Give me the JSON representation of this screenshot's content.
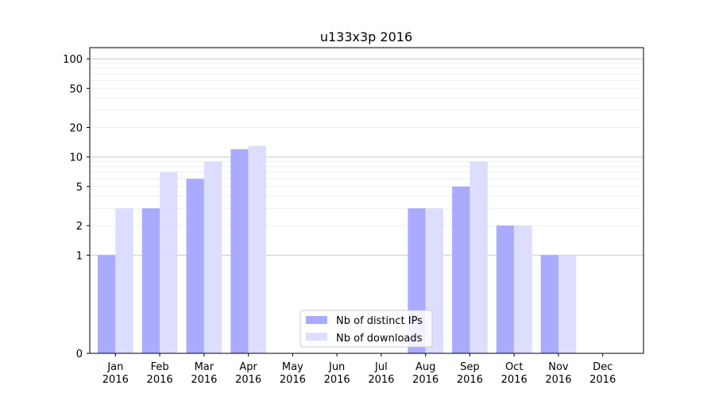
{
  "chart_data": {
    "type": "bar",
    "title": "u133x3p 2016",
    "xlabel": "",
    "ylabel": "",
    "yscale": "symlog",
    "ylim": [
      0,
      130
    ],
    "yticks": [
      0,
      1,
      2,
      5,
      10,
      20,
      50,
      100
    ],
    "categories": [
      "Jan\n2016",
      "Feb\n2016",
      "Mar\n2016",
      "Apr\n2016",
      "May\n2016",
      "Jun\n2016",
      "Jul\n2016",
      "Aug\n2016",
      "Sep\n2016",
      "Oct\n2016",
      "Nov\n2016",
      "Dec\n2016"
    ],
    "series": [
      {
        "name": "Nb of distinct IPs",
        "color": "#aaaaff",
        "values": [
          1,
          3,
          6,
          12,
          0,
          0,
          0,
          3,
          5,
          2,
          1,
          0
        ]
      },
      {
        "name": "Nb of downloads",
        "color": "#ddddff",
        "values": [
          3,
          7,
          9,
          13,
          0,
          0,
          0,
          3,
          9,
          2,
          1,
          0
        ]
      }
    ],
    "grid": true,
    "legend_position": "lower-center"
  }
}
